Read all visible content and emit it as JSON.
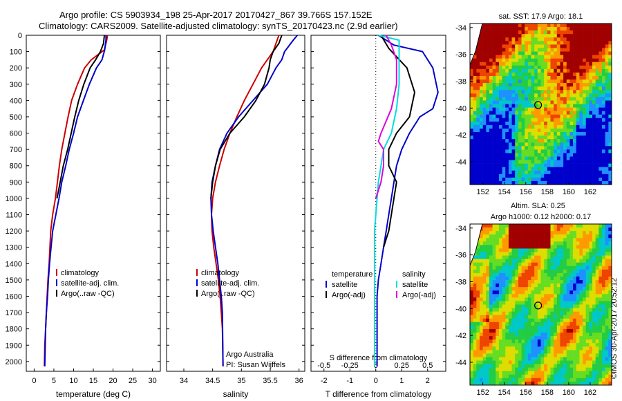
{
  "header": {
    "line1": "Argo profile: CS 5903934_198 25-Apr-2017 20170427_867 39.766S 157.152E",
    "line2": "Climatology: CARS2009. Satellite-adjusted climatology: synTS_20170423.nc (2.9d earlier)"
  },
  "credit": "©IMOS 30-Apr-2017 20:52:12",
  "colors": {
    "climatology": "#cc0000",
    "satellite": "#0000cc",
    "argo": "#000000",
    "sal_satellite": "#00dddd",
    "sal_argo": "#dd00dd"
  },
  "chart_data": [
    {
      "type": "line",
      "id": "temperature",
      "xlabel": "temperature (deg C)",
      "ylabel": "",
      "xlim": [
        -2,
        32
      ],
      "ylim": [
        2100,
        0
      ],
      "xticks": [
        0,
        5,
        10,
        15,
        20,
        25,
        30
      ],
      "yticks": [
        0,
        100,
        200,
        300,
        400,
        500,
        600,
        700,
        800,
        900,
        1000,
        1100,
        1200,
        1300,
        1400,
        1500,
        1600,
        1700,
        1800,
        1900,
        2000
      ],
      "legend": [
        "climatology",
        "satellite-adj. clim.",
        "Argo(..raw -QC)"
      ],
      "series": [
        {
          "name": "climatology",
          "color_key": "climatology",
          "width": 2,
          "x": [
            18.6,
            18.4,
            17.8,
            14.5,
            12.8,
            11.0,
            9.5,
            8.6,
            7.8,
            7.0,
            6.4,
            5.9,
            5.4,
            4.7,
            4.2,
            3.8,
            3.5,
            3.3,
            3.1,
            2.9,
            2.7,
            2.6
          ],
          "y": [
            0,
            30,
            90,
            150,
            200,
            300,
            400,
            500,
            600,
            700,
            800,
            900,
            1000,
            1100,
            1200,
            1400,
            1500,
            1600,
            1700,
            1800,
            1900,
            2030
          ]
        },
        {
          "name": "satellite-adj. clim.",
          "color_key": "satellite",
          "width": 2,
          "x": [
            18.2,
            18.2,
            17.9,
            17.2,
            15.8,
            14.0,
            12.5,
            11.0,
            10.0,
            8.9,
            8.0,
            7.0,
            6.3,
            5.5,
            4.7,
            4.3,
            3.9,
            3.6,
            3.4,
            3.1,
            2.9,
            2.7
          ],
          "y": [
            0,
            30,
            90,
            150,
            200,
            300,
            400,
            500,
            600,
            700,
            800,
            900,
            1000,
            1100,
            1200,
            1300,
            1400,
            1500,
            1600,
            1700,
            1800,
            2030
          ]
        },
        {
          "name": "Argo(..raw -QC)",
          "color_key": "argo",
          "width": 2,
          "x": [
            17.8,
            17.6,
            16.8,
            15.6,
            14.2,
            12.6,
            11.3,
            10.3,
            9.4,
            8.5,
            7.4,
            6.6,
            5.8
          ],
          "y": [
            0,
            50,
            100,
            150,
            200,
            300,
            400,
            500,
            600,
            700,
            800,
            900,
            1000
          ]
        }
      ]
    },
    {
      "type": "line",
      "id": "salinity",
      "xlabel": "salinity",
      "ylabel": "",
      "xlim": [
        33.7,
        36.1
      ],
      "ylim": [
        2100,
        0
      ],
      "xticks": [
        34,
        34.5,
        35,
        35.5,
        36
      ],
      "legend": [
        "climatology",
        "satellite-adj. clim.",
        "Argo(..raw -QC)"
      ],
      "note": [
        "Argo Australia",
        "PI: Susan Wijffels"
      ],
      "series": [
        {
          "name": "climatology",
          "color_key": "climatology",
          "width": 2,
          "x": [
            35.65,
            35.62,
            35.55,
            35.35,
            35.2,
            35.05,
            34.92,
            34.8,
            34.7,
            34.62,
            34.55,
            34.5,
            34.48,
            34.49,
            34.52,
            34.56,
            34.6,
            34.63,
            34.65,
            34.67,
            34.68
          ],
          "y": [
            0,
            30,
            100,
            200,
            300,
            400,
            500,
            600,
            700,
            800,
            900,
            1000,
            1100,
            1200,
            1300,
            1400,
            1500,
            1600,
            1700,
            1800,
            2030
          ]
        },
        {
          "name": "satellite-adj. clim.",
          "color_key": "satellite",
          "width": 2,
          "x": [
            35.97,
            35.9,
            35.75,
            35.7,
            35.6,
            35.45,
            35.2,
            34.95,
            34.75,
            34.62,
            34.55,
            34.49,
            34.47,
            34.48,
            34.51,
            34.55,
            34.59,
            34.62,
            34.65,
            34.67,
            34.68
          ],
          "y": [
            0,
            30,
            100,
            150,
            200,
            300,
            400,
            500,
            600,
            700,
            800,
            900,
            1000,
            1100,
            1200,
            1300,
            1400,
            1500,
            1600,
            1700,
            2030
          ]
        },
        {
          "name": "Argo(..raw -QC)",
          "color_key": "argo",
          "width": 2,
          "x": [
            35.7,
            35.65,
            35.55,
            35.5,
            35.48,
            35.4,
            35.25,
            35.05,
            34.8,
            34.63,
            34.55,
            34.5,
            34.47
          ],
          "y": [
            0,
            50,
            100,
            150,
            200,
            300,
            400,
            500,
            600,
            700,
            800,
            900,
            1000
          ]
        }
      ]
    },
    {
      "type": "line",
      "id": "difference",
      "xlabel": "T difference from climatology",
      "xlabel_top": "S difference from climatology",
      "ylabel": "",
      "xlim": [
        -2.5,
        2.7
      ],
      "ylim": [
        2100,
        0
      ],
      "xticks": [
        -2,
        -1,
        0,
        1,
        2
      ],
      "xticks_top": [
        "-0.5",
        "-0.25",
        "0",
        "0.25",
        "0.5"
      ],
      "legend_titles": [
        "temperature",
        "salinity"
      ],
      "legend": [
        "satellite",
        "Argo(-adj)",
        "satellite",
        "Argo(-adj)"
      ],
      "series": [
        {
          "name": "temperature satellite",
          "color_key": "satellite",
          "width": 2,
          "x": [
            0.1,
            0.7,
            1.8,
            2.2,
            2.4,
            2.2,
            1.7,
            1.3,
            1.0,
            0.8,
            0.7,
            0.6,
            0.5,
            0.4,
            0.3,
            0.2,
            0.1,
            0.05,
            0.05,
            0.05,
            0.05
          ],
          "y": [
            0,
            60,
            100,
            200,
            350,
            450,
            500,
            600,
            700,
            800,
            900,
            1000,
            1100,
            1200,
            1300,
            1400,
            1500,
            1600,
            1700,
            1800,
            2030
          ]
        },
        {
          "name": "temperature Argo(-adj)",
          "color_key": "argo",
          "width": 2,
          "x": [
            0.2,
            0.5,
            1.2,
            1.5,
            1.3,
            0.8,
            0.5,
            0.5,
            0.8,
            0.7,
            0.5,
            0.3
          ],
          "y": [
            0,
            80,
            200,
            350,
            500,
            600,
            700,
            800,
            900,
            1000,
            1200,
            1300
          ]
        },
        {
          "name": "salinity satellite",
          "color_key": "sal_satellite",
          "width": 2,
          "x": [
            0.1,
            0.9,
            0.9,
            0.9,
            0.8,
            0.6,
            0.3,
            0.2,
            0.1,
            0.05,
            0.0,
            -0.05,
            -0.05,
            -0.05,
            -0.05
          ],
          "y": [
            0,
            30,
            150,
            300,
            450,
            600,
            700,
            800,
            900,
            1000,
            1100,
            1200,
            1400,
            1600,
            2030
          ]
        },
        {
          "name": "salinity Argo(-adj)",
          "color_key": "sal_argo",
          "width": 2,
          "x": [
            0.4,
            0.6,
            0.8,
            0.8,
            0.6,
            0.2,
            0.1,
            0.3,
            0.3,
            0.2,
            0.0
          ],
          "y": [
            0,
            60,
            150,
            300,
            450,
            600,
            650,
            700,
            800,
            900,
            1000
          ]
        }
      ]
    },
    {
      "type": "heatmap",
      "id": "sst-map",
      "title": "sat. SST: 17.9 Argo: 18.1",
      "xticks": [
        "152",
        "154",
        "156",
        "158",
        "160",
        "162"
      ],
      "yticks": [
        "-34",
        "-36",
        "-38",
        "-40",
        "-42",
        "-44"
      ],
      "marker": [
        157.15,
        -39.77
      ]
    },
    {
      "type": "heatmap",
      "id": "sla-map",
      "title": "Altim. SLA: 0.25",
      "subtitle": "Argo h1000: 0.12 h2000: 0.17",
      "xticks": [
        "152",
        "154",
        "156",
        "158",
        "160",
        "162"
      ],
      "yticks": [
        "-34",
        "-36",
        "-38",
        "-40",
        "-42",
        "-44"
      ],
      "marker": [
        157.15,
        -39.77
      ]
    }
  ]
}
